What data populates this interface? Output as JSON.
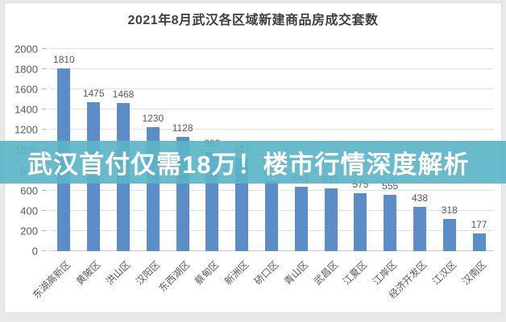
{
  "window": {
    "title": "2021年8月武汉各区域新建商品房成交套数"
  },
  "overlay": {
    "text": "武汉首付仅需18万！楼市行情深度解析",
    "background_color": "#5bb5c6",
    "background_opacity": 0.92,
    "text_color": "#ffffff"
  },
  "chart_data": {
    "type": "bar",
    "title": "2021年8月武汉各区域新建商品房成交套数",
    "categories": [
      "东湖高新区",
      "黄陂区",
      "洪山区",
      "汉阳区",
      "东西湖区",
      "蔡甸区",
      "新洲区",
      "硚口区",
      "青山区",
      "武昌区",
      "江夏区",
      "江岸区",
      "经济开发区",
      "江汉区",
      "汉南区"
    ],
    "values": [
      1810,
      1475,
      1468,
      1230,
      1128,
      983,
      927,
      697,
      641,
      619,
      575,
      555,
      438,
      318,
      177
    ],
    "xlabel": "",
    "ylabel": "",
    "ylim": [
      0,
      2000
    ],
    "yticks": [
      0,
      200,
      400,
      600,
      800,
      1000,
      1200,
      1400,
      1600,
      1800,
      2000
    ],
    "grid": true,
    "legend": false,
    "value_labels": true,
    "bar_color": "#5b8dc9",
    "axis_label_color": "#595959",
    "gridline_color": "#e2e2e2"
  }
}
